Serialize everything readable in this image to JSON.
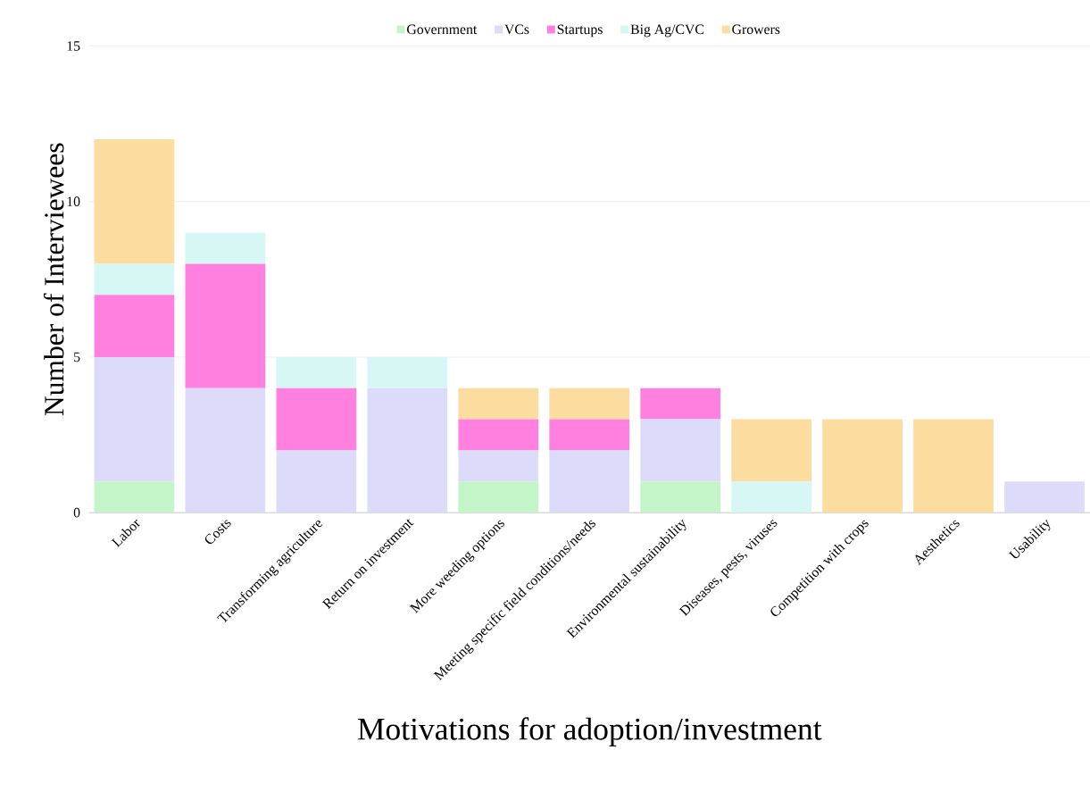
{
  "chart_data": {
    "type": "bar",
    "stacked": true,
    "xlabel": "Motivations for adoption/investment",
    "ylabel": "Number of Interviewees",
    "categories": [
      "Labor",
      "Costs",
      "Transforming agriculture",
      "Return on investment",
      "More weeding options",
      "Meeting specific field conditions/needs",
      "Environmental sustainability",
      "Diseases, pests, viruses",
      "Competition with crops",
      "Aesthetics",
      "Usability"
    ],
    "series": [
      {
        "name": "Government",
        "color": "#c3f5c8",
        "values": [
          1,
          0,
          0,
          0,
          1,
          0,
          1,
          0,
          0,
          0,
          0
        ]
      },
      {
        "name": "VCs",
        "color": "#dcdcfa",
        "values": [
          4,
          4,
          2,
          4,
          1,
          2,
          2,
          0,
          0,
          0,
          1
        ]
      },
      {
        "name": "Startups",
        "color": "#ff80df",
        "values": [
          2,
          4,
          2,
          0,
          1,
          1,
          1,
          0,
          0,
          0,
          0
        ]
      },
      {
        "name": "Big Ag/CVC",
        "color": "#d6f7f3",
        "values": [
          1,
          1,
          1,
          1,
          0,
          0,
          0,
          1,
          0,
          0,
          0
        ]
      },
      {
        "name": "Growers",
        "color": "#fddca0",
        "values": [
          4,
          0,
          0,
          0,
          1,
          1,
          0,
          2,
          3,
          3,
          0
        ]
      }
    ],
    "ylim": [
      0,
      15
    ],
    "yticks": [
      0,
      5,
      10,
      15
    ],
    "grid": "y",
    "legend": "top"
  }
}
